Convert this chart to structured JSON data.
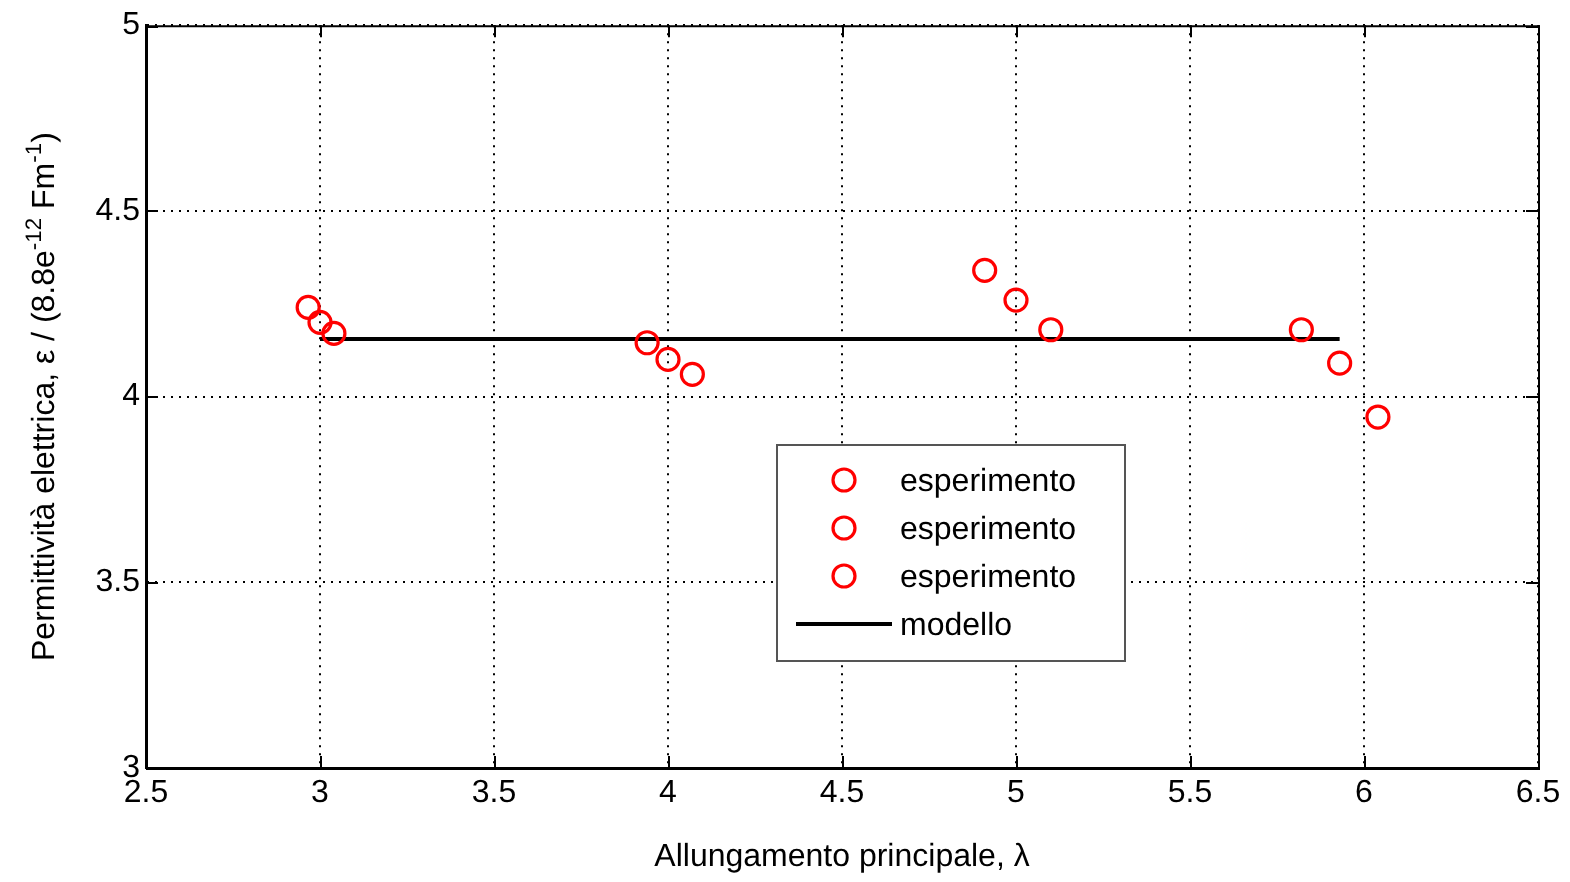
{
  "chart_data": {
    "type": "scatter",
    "xlabel": "Allungamento principale, λ",
    "ylabel": "Permittività elettrica, ε / (8.8e$^{-12}$ Fm$^{-1}$)",
    "xlim": [
      2.5,
      6.5
    ],
    "xticks": [
      2.5,
      3,
      3.5,
      4,
      4.5,
      5,
      5.5,
      6,
      6.5
    ],
    "ylim": [
      3,
      5
    ],
    "yticks": [
      3,
      3.5,
      4,
      4.5,
      5
    ],
    "grid": true,
    "legend": "bottom",
    "marker": "circle",
    "series": [
      {
        "name": "esperimento",
        "color": "#ff0000",
        "x": [
          2.966,
          3.94,
          4.91,
          5.82
        ],
        "values": [
          4.24,
          4.145,
          4.34,
          4.18
        ]
      },
      {
        "name": "esperimento",
        "color": "#ff0000",
        "x": [
          3.0,
          4.0,
          5.0,
          5.93
        ],
        "values": [
          4.2,
          4.1,
          4.26,
          4.09
        ]
      },
      {
        "name": "esperimento",
        "color": "#ff0000",
        "x": [
          3.04,
          4.07,
          5.1,
          6.04
        ],
        "values": [
          4.17,
          4.06,
          4.18,
          3.945
        ]
      },
      {
        "name": "modello",
        "type": "line",
        "color": "#000000",
        "marker": "none",
        "x": [
          3.0,
          5.93
        ],
        "values": [
          4.155,
          4.155
        ]
      }
    ]
  }
}
